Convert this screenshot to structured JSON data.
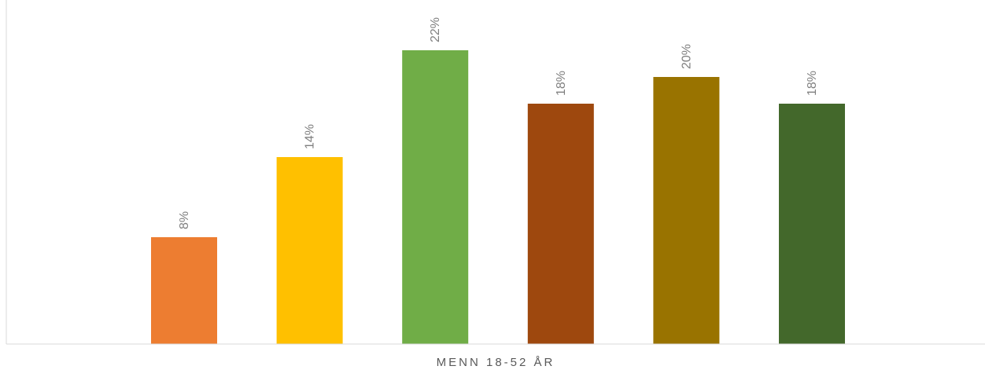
{
  "chart_data": {
    "type": "bar",
    "categories": [
      "MENN 18-52 ÅR"
    ],
    "series": [
      {
        "values": [
          8
        ],
        "label": "8%",
        "color": "#ed7d31"
      },
      {
        "values": [
          14
        ],
        "label": "14%",
        "color": "#ffc000"
      },
      {
        "values": [
          22
        ],
        "label": "22%",
        "color": "#70ad47"
      },
      {
        "values": [
          18
        ],
        "label": "18%",
        "color": "#9e480e"
      },
      {
        "values": [
          20
        ],
        "label": "20%",
        "color": "#997300"
      },
      {
        "values": [
          18
        ],
        "label": "18%",
        "color": "#43682b"
      }
    ],
    "ylim": [
      0,
      22
    ],
    "value_unit": "%",
    "grid": false,
    "legend": "none",
    "axes_colors": {
      "axis": "#d9d9d9"
    }
  }
}
